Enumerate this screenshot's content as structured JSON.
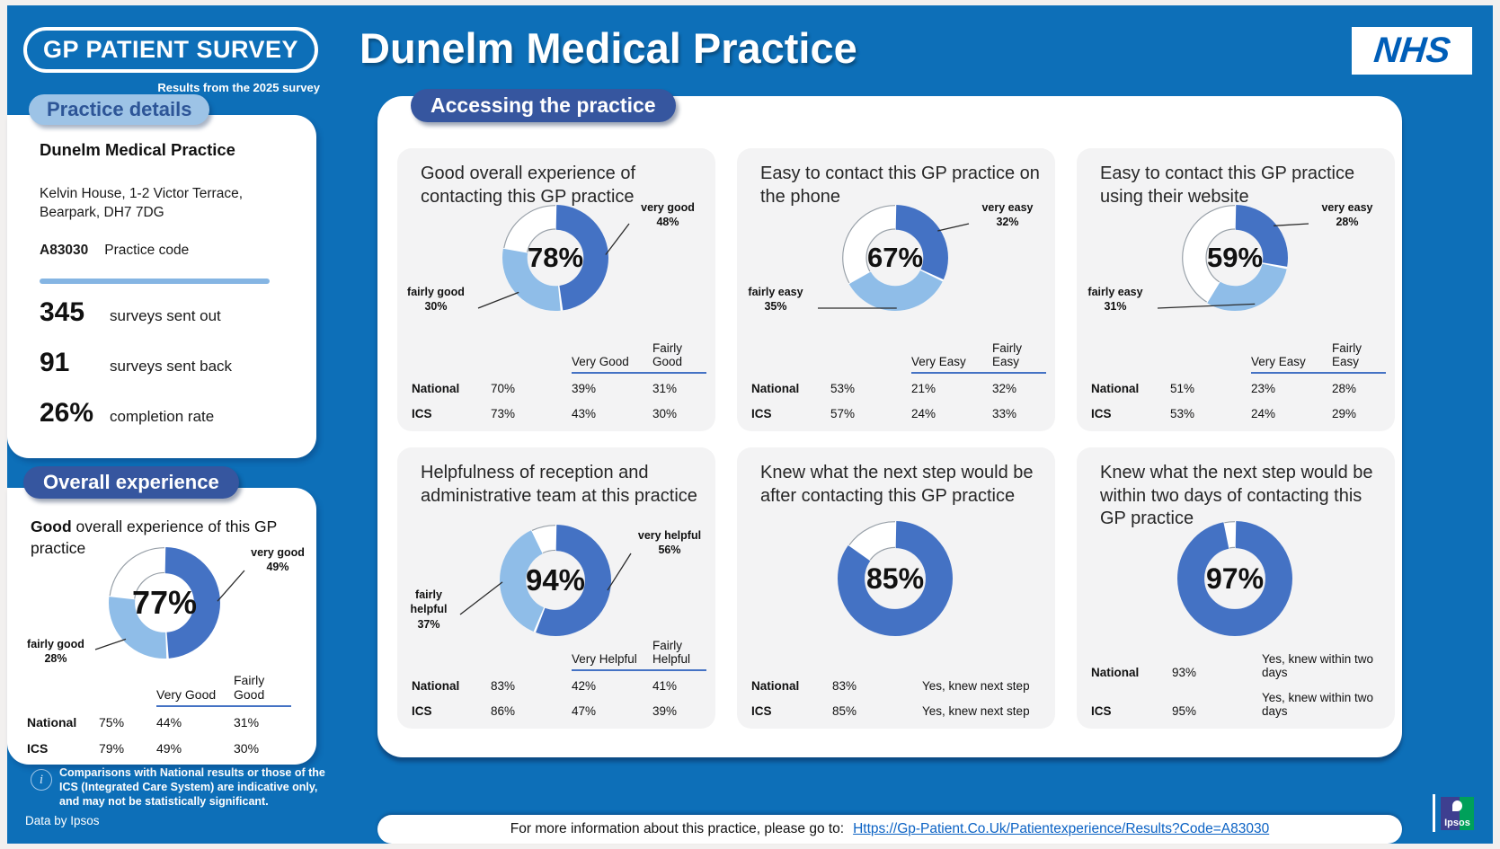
{
  "header": {
    "logo": "GP PATIENT SURVEY",
    "subtitle": "Results from the 2025 survey",
    "title": "Dunelm Medical Practice",
    "nhs": "NHS"
  },
  "sidebar": {
    "practice_details_heading": "Practice details",
    "practice_name": "Dunelm Medical Practice",
    "address_line1": "Kelvin House, 1-2 Victor Terrace,",
    "address_line2": "Bearpark, DH7 7DG",
    "practice_code": "A83030",
    "practice_code_label": "Practice code",
    "stats": [
      {
        "value": "345",
        "label": "surveys sent out"
      },
      {
        "value": "91",
        "label": "surveys sent back"
      },
      {
        "value": "26%",
        "label": "completion rate"
      }
    ],
    "overall_heading": "Overall experience",
    "note": "Comparisons with National results or those of the ICS (Integrated Care System) are indicative only, and may not be statistically significant.",
    "credit": "Data by Ipsos"
  },
  "main": {
    "accessing_heading": "Accessing the practice",
    "footer_label": "For more information about this practice, please go to:",
    "footer_link": "Https://Gp-Patient.Co.Uk/Patientexperience/Results?Code=A83030",
    "ipsos": "Ipsos"
  },
  "colors": {
    "background_blue": "#0d6fb8",
    "header_pill_dark": "#36569f",
    "header_pill_light": "#9dc3e6",
    "donut_dark": "#4472c4",
    "donut_light": "#8fbde8",
    "table_rule": "#4472c4",
    "nhs_blue": "#005eb8",
    "link_blue": "#0b62c4"
  },
  "chart_data": [
    {
      "type": "pie",
      "title_bold": "Good",
      "title_rest": " overall experience of this GP practice",
      "center_value": 77,
      "center_label": "77%",
      "segments": [
        {
          "label": "very good",
          "value": 49
        },
        {
          "label": "fairly good",
          "value": 28
        }
      ],
      "table": {
        "col_headers": [
          "Very Good",
          "Fairly Good"
        ],
        "rows": [
          [
            "National",
            "75%",
            "44%",
            "31%"
          ],
          [
            "ICS",
            "79%",
            "49%",
            "30%"
          ]
        ]
      }
    },
    {
      "type": "pie",
      "title": "Good overall experience of contacting this GP practice",
      "center_value": 78,
      "center_label": "78%",
      "segments": [
        {
          "label": "very good",
          "value": 48
        },
        {
          "label": "fairly good",
          "value": 30
        }
      ],
      "table": {
        "col_headers": [
          "Very Good",
          "Fairly Good"
        ],
        "rows": [
          [
            "National",
            "70%",
            "39%",
            "31%"
          ],
          [
            "ICS",
            "73%",
            "43%",
            "30%"
          ]
        ]
      }
    },
    {
      "type": "pie",
      "title": "Easy to contact this GP practice on the phone",
      "center_value": 67,
      "center_label": "67%",
      "segments": [
        {
          "label": "very easy",
          "value": 32
        },
        {
          "label": "fairly easy",
          "value": 35
        }
      ],
      "table": {
        "col_headers": [
          "Very Easy",
          "Fairly Easy"
        ],
        "rows": [
          [
            "National",
            "53%",
            "21%",
            "32%"
          ],
          [
            "ICS",
            "57%",
            "24%",
            "33%"
          ]
        ]
      }
    },
    {
      "type": "pie",
      "title": "Easy to contact this GP practice using their website",
      "center_value": 59,
      "center_label": "59%",
      "segments": [
        {
          "label": "very easy",
          "value": 28
        },
        {
          "label": "fairly easy",
          "value": 31
        }
      ],
      "table": {
        "col_headers": [
          "Very Easy",
          "Fairly Easy"
        ],
        "rows": [
          [
            "National",
            "51%",
            "23%",
            "28%"
          ],
          [
            "ICS",
            "53%",
            "24%",
            "29%"
          ]
        ]
      }
    },
    {
      "type": "pie",
      "title": "Helpfulness of reception and administrative team at this practice",
      "center_value": 94,
      "center_label": "94%",
      "segments": [
        {
          "label": "very helpful",
          "value": 56
        },
        {
          "label": "fairly helpful",
          "value": 37
        }
      ],
      "table": {
        "col_headers": [
          "Very Helpful",
          "Fairly Helpful"
        ],
        "rows": [
          [
            "National",
            "83%",
            "42%",
            "41%"
          ],
          [
            "ICS",
            "86%",
            "47%",
            "39%"
          ]
        ]
      }
    },
    {
      "type": "pie",
      "title": "Knew what the next step would be after contacting this GP practice",
      "center_value": 85,
      "center_label": "85%",
      "segments": [
        {
          "label": "Yes, knew next step",
          "value": 85
        }
      ],
      "table": {
        "rows": [
          [
            "National",
            "83%",
            "Yes, knew next step"
          ],
          [
            "ICS",
            "85%",
            "Yes, knew next step"
          ]
        ]
      }
    },
    {
      "type": "pie",
      "title": "Knew what the next step would be within two days of contacting this GP practice",
      "center_value": 97,
      "center_label": "97%",
      "segments": [
        {
          "label": "Yes, knew within two days",
          "value": 97
        }
      ],
      "table": {
        "rows": [
          [
            "National",
            "93%",
            "Yes, knew within two days"
          ],
          [
            "ICS",
            "95%",
            "Yes, knew within two days"
          ]
        ]
      }
    }
  ]
}
